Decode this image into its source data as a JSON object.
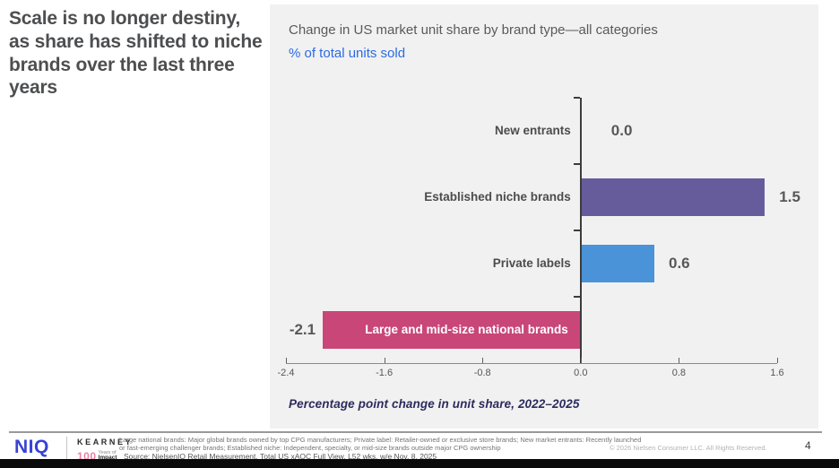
{
  "slide": {
    "title": "Scale is no longer destiny, as share has shifted to niche brands over the last three years",
    "page_number": "4"
  },
  "chart": {
    "title": "Change in US market unit share by brand type—all categories",
    "subtitle": "% of total units sold",
    "caption": "Percentage point change in unit share, 2022–2025"
  },
  "chart_data": {
    "type": "bar",
    "orientation": "horizontal",
    "title": "Change in US market unit share by brand type—all categories",
    "subtitle": "% of total units sold",
    "xlabel": "Percentage point change in unit share, 2022–2025",
    "categories": [
      "New entrants",
      "Established niche brands",
      "Private labels",
      "Large and mid-size national brands"
    ],
    "values": [
      0,
      1.5,
      0.6,
      -2.1
    ],
    "value_labels": [
      "0.0",
      "1.5",
      "0.6",
      "-2.1"
    ],
    "bar_colors": [
      "transparent",
      "#675c9b",
      "#4b93d8",
      "#c94678"
    ],
    "xlim": [
      -2.4,
      1.6
    ],
    "x_ticks": [
      "-2.4",
      "-1.6",
      "-0.8",
      "0.0",
      "0.8",
      "1.6"
    ],
    "grid": false,
    "legend": "none",
    "panel_background": "#f1f1f1"
  },
  "footer": {
    "niq_logo": "NIQ",
    "kearney_logo": "KEARNEY",
    "kearney_100": "100",
    "kearney_years": "Years of",
    "kearney_impact": "Impact",
    "footnote_line1": "Large national brands: Major global brands owned by top CPG manufacturers; Private label: Retailer-owned or exclusive store brands; New market entrants: Recently launched",
    "footnote_line2": "or fast-emerging challenger brands; Established niche: Independent, specialty, or mid-size brands outside major CPG ownership",
    "source": "Source: NielsenIQ Retail Measurement, Total US xAOC Full View, L52 wks. w/e Nov. 8, 2025",
    "copyright": "© 2026 Nielsen Consumer LLC. All Rights Reserved.",
    "page": "4"
  },
  "colors": {
    "accent_blue_text": "#2c6be2",
    "purple_bar": "#675c9b",
    "blue_bar": "#4b93d8",
    "pink_bar": "#c94678",
    "niq_blue": "#3743d6",
    "kearney_pink": "#ed7fa4"
  }
}
